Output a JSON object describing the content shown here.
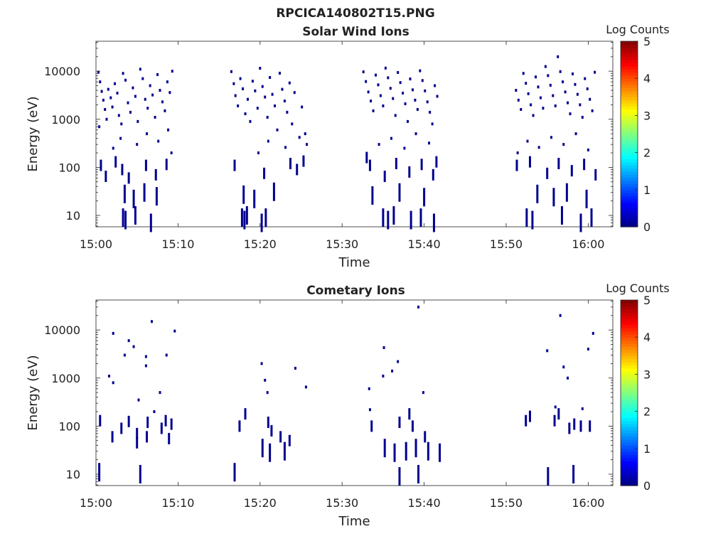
{
  "figure_title": "RPCICA140802T15.PNG",
  "chart_data": [
    {
      "type": "heatmap",
      "title": "Solar Wind Ions",
      "xlabel": "Time",
      "ylabel": "Energy (eV)",
      "x_ticks": [
        "15:00",
        "15:10",
        "15:20",
        "15:30",
        "15:40",
        "15:50",
        "16:00"
      ],
      "x_range_minutes": [
        0,
        63
      ],
      "y_ticks": [
        "10",
        "100",
        "1000",
        "10000"
      ],
      "y_scale": "log",
      "y_range": [
        5.8,
        42000
      ],
      "colorbar": {
        "label": "Log Counts",
        "ticks": [
          "0",
          "1",
          "2",
          "3",
          "4",
          "5"
        ],
        "range": [
          0,
          5
        ]
      },
      "activity_intervals_minutes": [
        [
          0,
          9.8
        ],
        [
          16.4,
          26
        ],
        [
          32.5,
          42
        ],
        [
          51,
          61.2
        ]
      ],
      "points": [
        [
          0.3,
          9500
        ],
        [
          0.5,
          6000
        ],
        [
          0.7,
          3800
        ],
        [
          0.9,
          2500
        ],
        [
          1.1,
          1600
        ],
        [
          1.3,
          1000
        ],
        [
          0.4,
          700
        ],
        [
          1.5,
          4200
        ],
        [
          1.8,
          2800
        ],
        [
          2.0,
          1800
        ],
        [
          2.3,
          5500
        ],
        [
          2.6,
          3500
        ],
        [
          2.8,
          1200
        ],
        [
          3.1,
          800
        ],
        [
          3.3,
          9000
        ],
        [
          3.6,
          6500
        ],
        [
          3.9,
          2200
        ],
        [
          4.2,
          1400
        ],
        [
          4.5,
          4500
        ],
        [
          4.8,
          3000
        ],
        [
          5.1,
          900
        ],
        [
          5.4,
          11000
        ],
        [
          5.7,
          7000
        ],
        [
          6.0,
          2600
        ],
        [
          6.3,
          1700
        ],
        [
          6.6,
          5000
        ],
        [
          6.9,
          3200
        ],
        [
          7.2,
          1100
        ],
        [
          7.5,
          8500
        ],
        [
          7.8,
          4000
        ],
        [
          8.1,
          2300
        ],
        [
          8.4,
          1500
        ],
        [
          8.7,
          6000
        ],
        [
          9.0,
          3600
        ],
        [
          9.3,
          10000
        ],
        [
          2.1,
          250
        ],
        [
          3.0,
          400
        ],
        [
          5.0,
          300
        ],
        [
          6.2,
          500
        ],
        [
          7.6,
          350
        ],
        [
          8.8,
          600
        ],
        [
          9.2,
          200
        ],
        [
          0.6,
          110
        ],
        [
          1.2,
          65
        ],
        [
          2.4,
          130
        ],
        [
          3.2,
          90
        ],
        [
          4.0,
          60
        ],
        [
          6.1,
          110
        ],
        [
          7.3,
          70
        ],
        [
          8.6,
          115
        ],
        [
          3.5,
          28
        ],
        [
          4.6,
          22
        ],
        [
          5.9,
          30
        ],
        [
          7.4,
          25
        ],
        [
          3.3,
          9
        ],
        [
          3.6,
          8
        ],
        [
          4.8,
          10
        ],
        [
          6.7,
          7
        ],
        [
          16.5,
          9800
        ],
        [
          16.8,
          5500
        ],
        [
          17.0,
          3100
        ],
        [
          17.3,
          1900
        ],
        [
          17.6,
          7000
        ],
        [
          17.9,
          4300
        ],
        [
          18.2,
          1300
        ],
        [
          18.5,
          2600
        ],
        [
          18.8,
          900
        ],
        [
          19.1,
          6200
        ],
        [
          19.4,
          3900
        ],
        [
          19.7,
          1700
        ],
        [
          20.0,
          11500
        ],
        [
          20.3,
          4800
        ],
        [
          20.6,
          2900
        ],
        [
          20.9,
          1100
        ],
        [
          21.2,
          7400
        ],
        [
          21.5,
          3300
        ],
        [
          21.8,
          1900
        ],
        [
          22.1,
          600
        ],
        [
          22.4,
          9100
        ],
        [
          22.7,
          4200
        ],
        [
          23.0,
          2400
        ],
        [
          23.3,
          1400
        ],
        [
          23.6,
          5700
        ],
        [
          23.9,
          800
        ],
        [
          24.2,
          3600
        ],
        [
          25.1,
          1800
        ],
        [
          25.5,
          500
        ],
        [
          19.8,
          200
        ],
        [
          21.0,
          350
        ],
        [
          23.1,
          260
        ],
        [
          24.8,
          420
        ],
        [
          25.7,
          300
        ],
        [
          16.9,
          110
        ],
        [
          20.5,
          75
        ],
        [
          23.7,
          120
        ],
        [
          24.5,
          90
        ],
        [
          25.3,
          135
        ],
        [
          18.0,
          27
        ],
        [
          19.3,
          22
        ],
        [
          21.7,
          31
        ],
        [
          17.8,
          9
        ],
        [
          18.1,
          8
        ],
        [
          18.4,
          10
        ],
        [
          20.2,
          7
        ],
        [
          20.7,
          9
        ],
        [
          32.6,
          9700
        ],
        [
          32.9,
          6100
        ],
        [
          33.2,
          3700
        ],
        [
          33.5,
          2400
        ],
        [
          33.8,
          1500
        ],
        [
          34.1,
          8300
        ],
        [
          34.4,
          5200
        ],
        [
          34.7,
          3100
        ],
        [
          35.0,
          1900
        ],
        [
          35.3,
          11600
        ],
        [
          35.6,
          7300
        ],
        [
          35.9,
          4400
        ],
        [
          36.2,
          2700
        ],
        [
          36.5,
          1200
        ],
        [
          36.8,
          9400
        ],
        [
          37.1,
          5800
        ],
        [
          37.4,
          3500
        ],
        [
          37.7,
          2100
        ],
        [
          38.0,
          900
        ],
        [
          38.3,
          6900
        ],
        [
          38.6,
          4100
        ],
        [
          38.9,
          2500
        ],
        [
          39.2,
          1600
        ],
        [
          39.5,
          10200
        ],
        [
          39.8,
          6400
        ],
        [
          40.1,
          3900
        ],
        [
          40.4,
          2300
        ],
        [
          40.7,
          1400
        ],
        [
          41.0,
          800
        ],
        [
          41.3,
          5000
        ],
        [
          41.6,
          3000
        ],
        [
          33.0,
          160
        ],
        [
          34.5,
          300
        ],
        [
          36.0,
          400
        ],
        [
          37.6,
          250
        ],
        [
          39.0,
          500
        ],
        [
          40.6,
          320
        ],
        [
          41.5,
          130
        ],
        [
          33.4,
          110
        ],
        [
          35.2,
          65
        ],
        [
          36.6,
          120
        ],
        [
          38.2,
          80
        ],
        [
          39.7,
          115
        ],
        [
          41.1,
          70
        ],
        [
          33.7,
          26
        ],
        [
          37.0,
          30
        ],
        [
          40.0,
          24
        ],
        [
          35.0,
          9
        ],
        [
          35.6,
          8
        ],
        [
          36.3,
          10
        ],
        [
          38.4,
          8
        ],
        [
          39.6,
          9
        ],
        [
          41.2,
          7
        ],
        [
          51.2,
          4000
        ],
        [
          51.5,
          2500
        ],
        [
          51.8,
          1600
        ],
        [
          52.1,
          9000
        ],
        [
          52.4,
          5600
        ],
        [
          52.7,
          3400
        ],
        [
          53.0,
          2000
        ],
        [
          53.3,
          1200
        ],
        [
          53.6,
          7600
        ],
        [
          53.9,
          4700
        ],
        [
          54.2,
          2800
        ],
        [
          54.5,
          1700
        ],
        [
          54.8,
          12500
        ],
        [
          55.1,
          8100
        ],
        [
          55.4,
          5100
        ],
        [
          55.7,
          3100
        ],
        [
          56.0,
          1900
        ],
        [
          56.3,
          20000
        ],
        [
          56.6,
          9800
        ],
        [
          56.9,
          6000
        ],
        [
          57.2,
          3700
        ],
        [
          57.5,
          2200
        ],
        [
          57.8,
          1300
        ],
        [
          58.1,
          8800
        ],
        [
          58.4,
          5300
        ],
        [
          58.7,
          3300
        ],
        [
          59.0,
          2000
        ],
        [
          59.3,
          1100
        ],
        [
          59.6,
          7000
        ],
        [
          59.9,
          4300
        ],
        [
          60.2,
          2600
        ],
        [
          60.5,
          1500
        ],
        [
          60.8,
          9500
        ],
        [
          51.4,
          200
        ],
        [
          52.6,
          350
        ],
        [
          54.0,
          260
        ],
        [
          55.5,
          420
        ],
        [
          57.0,
          300
        ],
        [
          58.5,
          500
        ],
        [
          60.0,
          230
        ],
        [
          51.3,
          110
        ],
        [
          52.9,
          130
        ],
        [
          55.0,
          75
        ],
        [
          56.4,
          120
        ],
        [
          58.0,
          85
        ],
        [
          59.5,
          115
        ],
        [
          60.9,
          70
        ],
        [
          53.8,
          28
        ],
        [
          55.8,
          24
        ],
        [
          57.4,
          30
        ],
        [
          59.8,
          22
        ],
        [
          52.5,
          9
        ],
        [
          53.2,
          8
        ],
        [
          56.8,
          10
        ],
        [
          59.1,
          7
        ],
        [
          60.4,
          9
        ]
      ]
    },
    {
      "type": "heatmap",
      "title": "Cometary Ions",
      "xlabel": "Time",
      "ylabel": "Energy (eV)",
      "x_ticks": [
        "15:00",
        "15:10",
        "15:20",
        "15:30",
        "15:40",
        "15:50",
        "16:00"
      ],
      "x_range_minutes": [
        0,
        63
      ],
      "y_ticks": [
        "10",
        "100",
        "1000",
        "10000"
      ],
      "y_scale": "log",
      "y_range": [
        5.8,
        42000
      ],
      "colorbar": {
        "label": "Log Counts",
        "ticks": [
          "0",
          "1",
          "2",
          "3",
          "4",
          "5"
        ],
        "range": [
          0,
          5
        ]
      },
      "points": [
        [
          2.1,
          8500
        ],
        [
          4.0,
          6000
        ],
        [
          4.6,
          4500
        ],
        [
          3.5,
          3000
        ],
        [
          6.1,
          2800
        ],
        [
          8.6,
          3000
        ],
        [
          1.6,
          1100
        ],
        [
          2.1,
          800
        ],
        [
          5.2,
          350
        ],
        [
          7.8,
          500
        ],
        [
          6.8,
          15000
        ],
        [
          9.6,
          9500
        ],
        [
          0.5,
          130
        ],
        [
          2.0,
          60
        ],
        [
          3.1,
          90
        ],
        [
          4.0,
          125
        ],
        [
          5.0,
          70
        ],
        [
          6.3,
          120
        ],
        [
          7.1,
          200
        ],
        [
          8.0,
          90
        ],
        [
          8.5,
          130
        ],
        [
          9.2,
          110
        ],
        [
          5.0,
          45
        ],
        [
          6.2,
          60
        ],
        [
          8.9,
          55
        ],
        [
          0.4,
          11
        ],
        [
          5.4,
          10
        ],
        [
          6.1,
          1800
        ],
        [
          16.9,
          11
        ],
        [
          17.5,
          100
        ],
        [
          18.2,
          180
        ],
        [
          20.2,
          2000
        ],
        [
          20.6,
          900
        ],
        [
          20.9,
          500
        ],
        [
          21.0,
          120
        ],
        [
          21.4,
          80
        ],
        [
          22.5,
          60
        ],
        [
          23.6,
          50
        ],
        [
          24.3,
          1600
        ],
        [
          25.6,
          650
        ],
        [
          20.3,
          35
        ],
        [
          21.2,
          28
        ],
        [
          23.0,
          30
        ],
        [
          33.3,
          600
        ],
        [
          33.4,
          220
        ],
        [
          33.6,
          100
        ],
        [
          35.1,
          4300
        ],
        [
          35.0,
          1100
        ],
        [
          36.1,
          1400
        ],
        [
          36.8,
          2200
        ],
        [
          37.0,
          120
        ],
        [
          38.2,
          180
        ],
        [
          38.6,
          100
        ],
        [
          40.1,
          60
        ],
        [
          39.9,
          500
        ],
        [
          39.3,
          30000
        ],
        [
          35.2,
          35
        ],
        [
          36.4,
          28
        ],
        [
          37.8,
          30
        ],
        [
          39.0,
          35
        ],
        [
          40.5,
          30
        ],
        [
          41.9,
          28
        ],
        [
          37.0,
          9
        ],
        [
          39.3,
          10
        ],
        [
          52.4,
          130
        ],
        [
          52.9,
          160
        ],
        [
          55.0,
          3700
        ],
        [
          56.0,
          250
        ],
        [
          56.6,
          20000
        ],
        [
          57.0,
          1700
        ],
        [
          57.5,
          1000
        ],
        [
          56.4,
          180
        ],
        [
          55.9,
          130
        ],
        [
          57.7,
          90
        ],
        [
          58.3,
          110
        ],
        [
          59.1,
          100
        ],
        [
          60.0,
          4000
        ],
        [
          60.6,
          8500
        ],
        [
          59.3,
          230
        ],
        [
          60.2,
          100
        ],
        [
          55.1,
          9
        ],
        [
          58.2,
          10
        ]
      ]
    }
  ]
}
